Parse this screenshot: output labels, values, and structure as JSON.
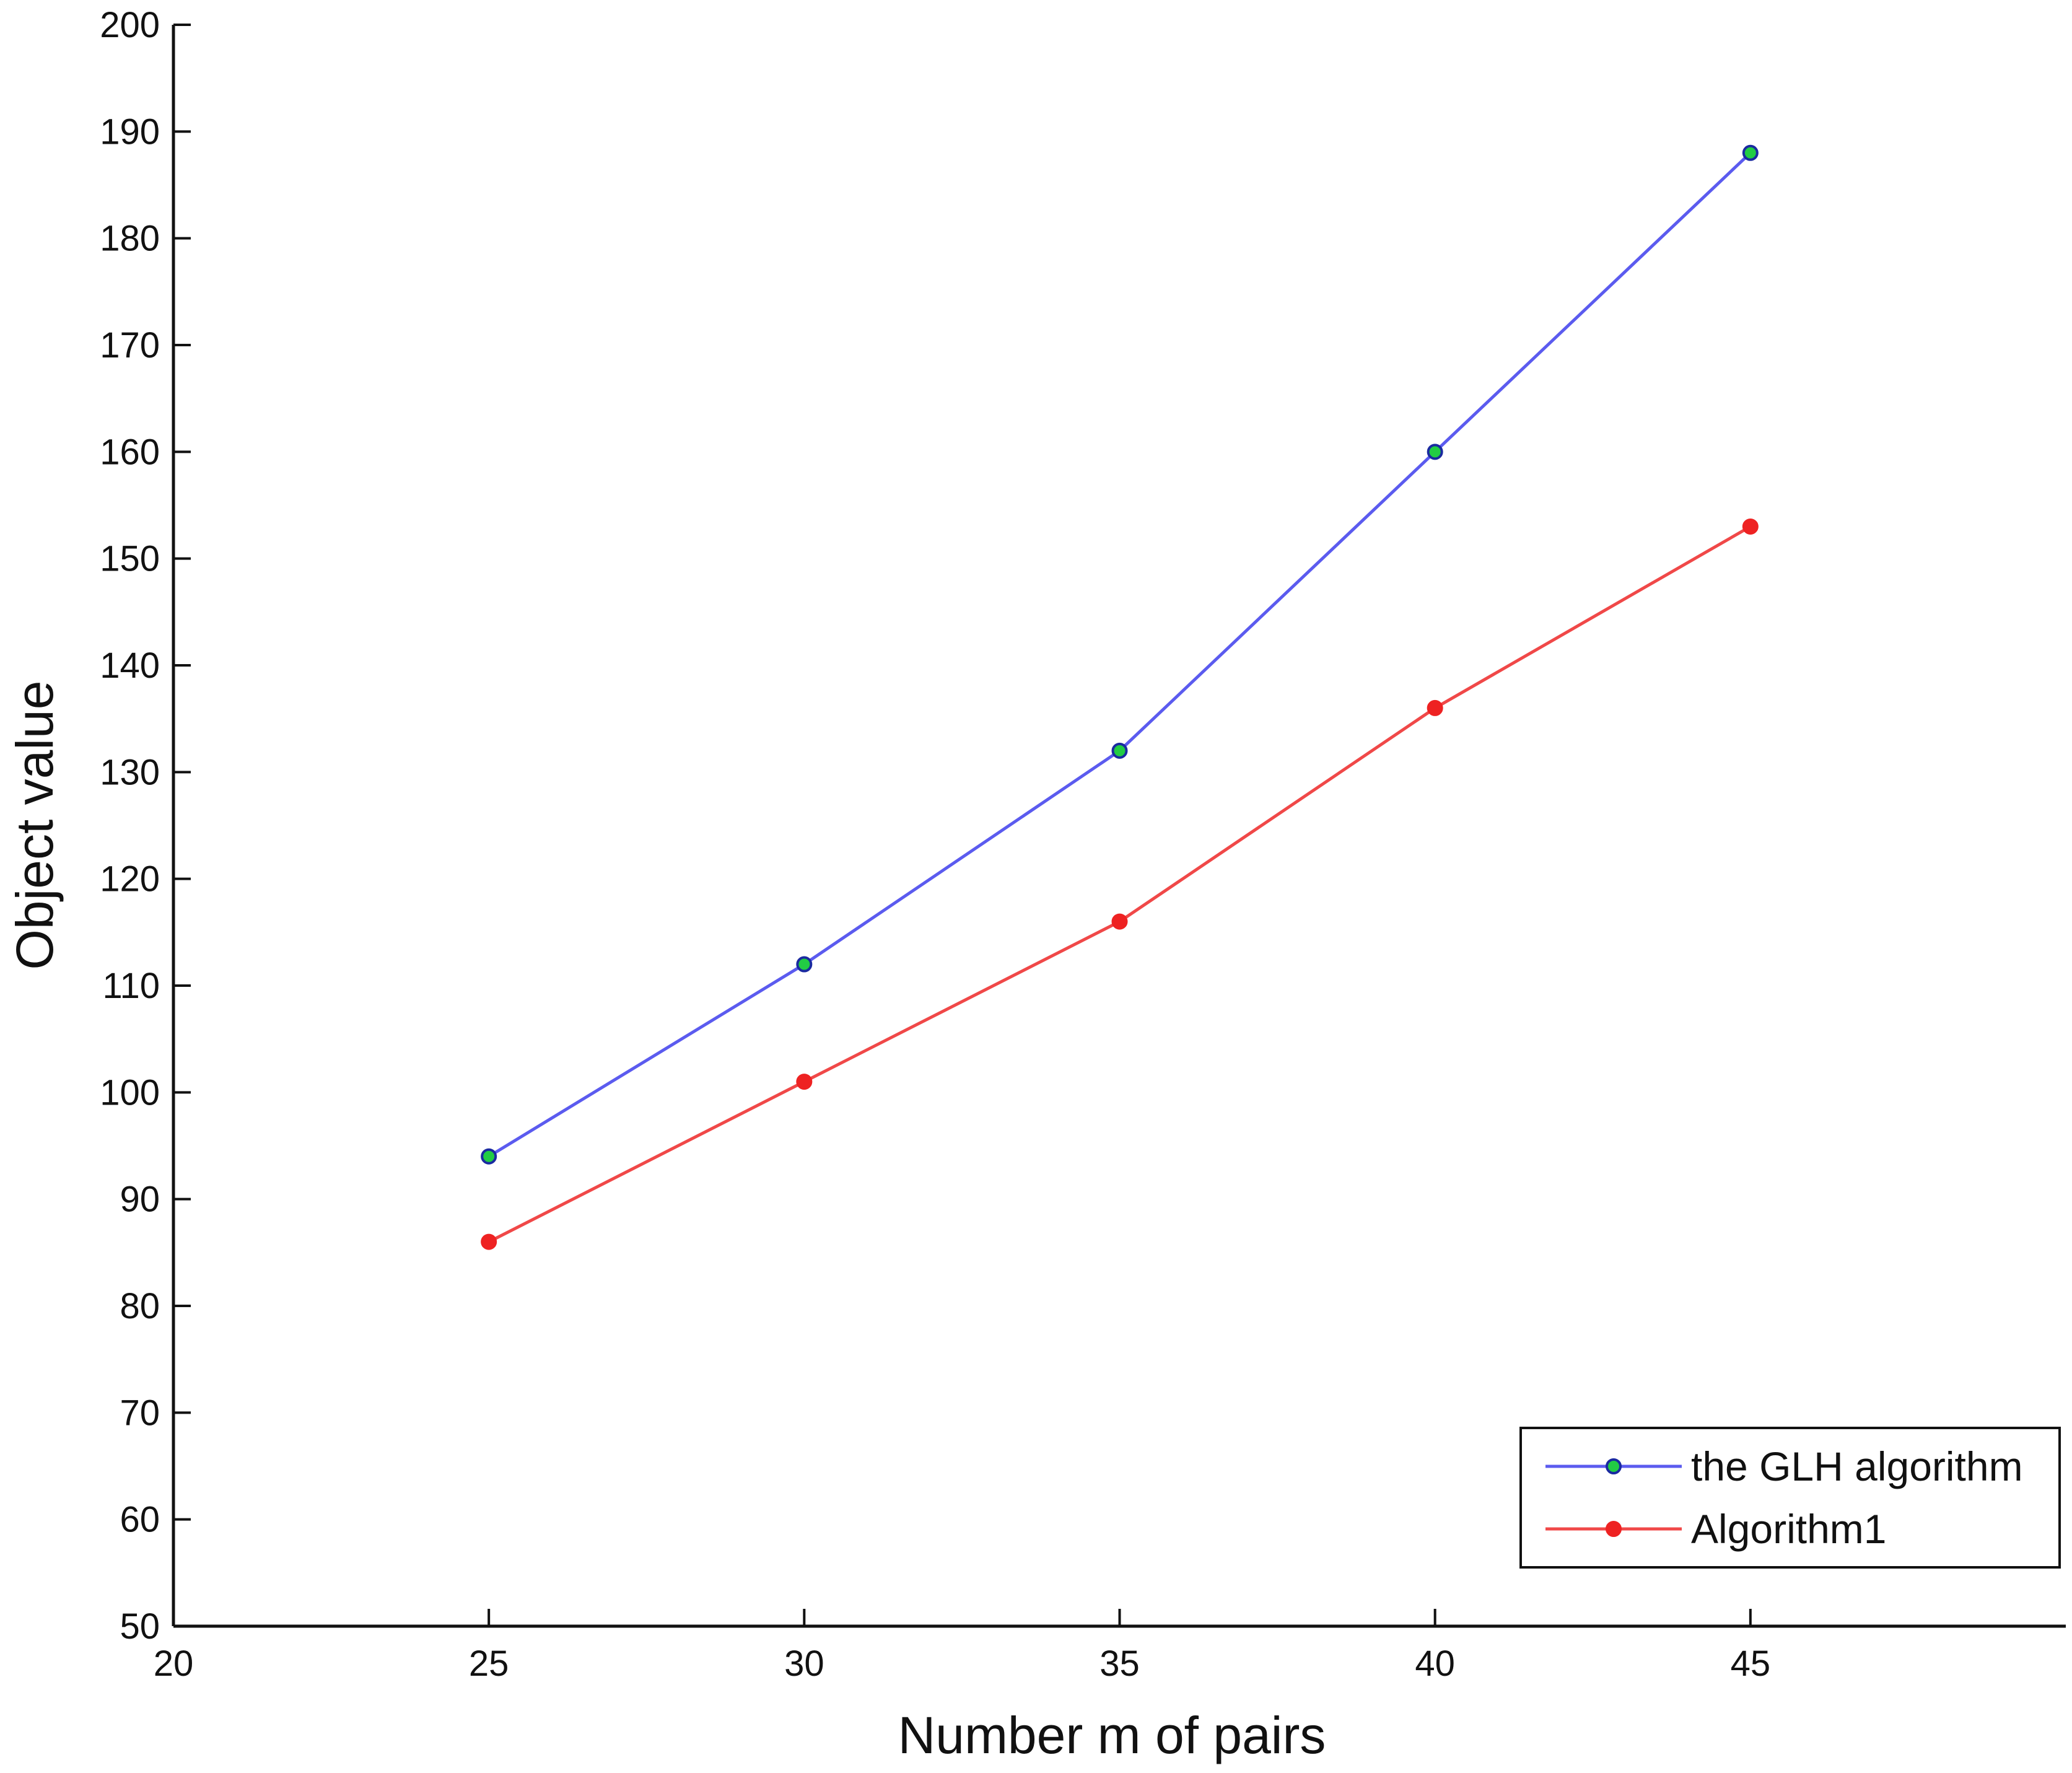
{
  "chart_data": {
    "type": "line",
    "title": "",
    "xlabel": "Number m of pairs",
    "ylabel": "Object value",
    "xlim": [
      20,
      50
    ],
    "ylim": [
      50,
      200
    ],
    "xticks": [
      20,
      25,
      30,
      35,
      40,
      45
    ],
    "yticks": [
      50,
      60,
      70,
      80,
      90,
      100,
      110,
      120,
      130,
      140,
      150,
      160,
      170,
      180,
      190,
      200
    ],
    "grid": false,
    "legend_position": "bottom-right",
    "x": [
      25,
      30,
      35,
      40,
      45
    ],
    "series": [
      {
        "name": "the GLH algorithm",
        "values": [
          94,
          112,
          132,
          160,
          188
        ],
        "line_color": "#5b5bef",
        "marker_fill": "#22cc44",
        "marker_edge": "#1a2aa0"
      },
      {
        "name": "Algorithm1",
        "values": [
          86,
          101,
          116,
          136,
          153
        ],
        "line_color": "#f04848",
        "marker_fill": "#ee2222",
        "marker_edge": "#ee2222"
      }
    ]
  }
}
